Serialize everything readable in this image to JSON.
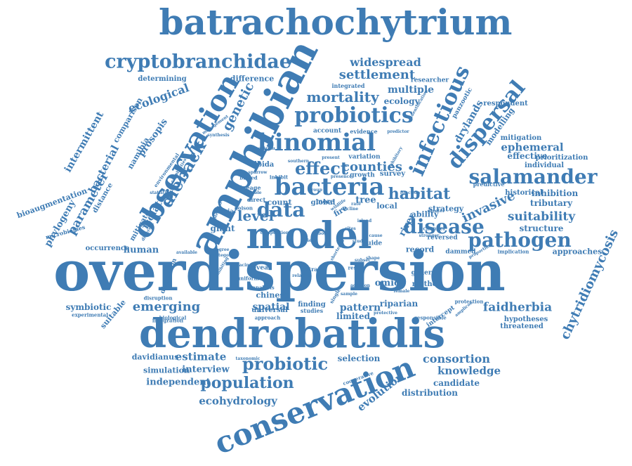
{
  "theme": {
    "word_color": "#3f7cb4",
    "background": "#ffffff"
  },
  "words": [
    "batrachochytrium",
    "overdispersion",
    "dendrobatidis",
    "amphibian",
    "model",
    "conservation",
    "observation",
    "bacteria",
    "binomial",
    "probiotics",
    "salamander",
    "infectious",
    "dispersal",
    "pathogen",
    "disease",
    "cryptobranchidae",
    "data",
    "effect",
    "dieback",
    "probiotic",
    "population",
    "habitat",
    "mortality",
    "chytridiomycosis",
    "level",
    "settlement",
    "widespread",
    "genetic",
    "counties",
    "invasive",
    "suitability",
    "emerging",
    "faidherbia",
    "consortion",
    "knowledge",
    "ephemeral",
    "evolution",
    "ecohydrology",
    "estimate",
    "interview",
    "parameter",
    "bacterial",
    "intermittent",
    "isolate",
    "phylogeny",
    "ecological",
    "prosopis",
    "multiple",
    "ecology",
    "drylands",
    "modelling",
    "effective",
    "spatial",
    "pattern",
    "omics",
    "human",
    "giant",
    "river",
    "structure",
    "tributary",
    "inhibition",
    "approaches",
    "chinese",
    "riparian",
    "limited",
    "symbiotic",
    "suitable",
    "selection",
    "candidate",
    "distribution",
    "independent",
    "simulation",
    "davidianus",
    "mitigate",
    "bioaugmentation",
    "comparison",
    "namibia",
    "distance",
    "microbiomes",
    "occurrence",
    "determining",
    "difference",
    "respondent",
    "researcher",
    "integrated",
    "panzootic",
    "mitigation",
    "prioritization",
    "individual",
    "historical",
    "predictive",
    "strategy",
    "ability",
    "reversed",
    "record",
    "dammed",
    "method",
    "genera",
    "intercept",
    "hypotheses",
    "threatened",
    "responsible",
    "protection",
    "local",
    "global",
    "survey",
    "growth",
    "variation",
    "account",
    "evidence",
    "predictor",
    "present",
    "inhibit",
    "albida",
    "count",
    "more",
    "tree",
    "guide",
    "fire",
    "reveal",
    "extra",
    "universal",
    "approach",
    "finding",
    "studies",
    "biological",
    "integration",
    "experimental",
    "dispersion",
    "disruption",
    "uniform",
    "analysis",
    "implication",
    "proportion",
    "channel",
    "greater",
    "stronger",
    "function",
    "inhibitory",
    "identification",
    "management",
    "synthesis",
    "capabilities",
    "environmental",
    "statistical",
    "biased",
    "lineage",
    "variable",
    "direct",
    "poison",
    "andria",
    "different",
    "potential",
    "available",
    "exhibiting",
    "taxonomic",
    "cooperative",
    "protective",
    "female",
    "amplicon",
    "single",
    "sample",
    "addition",
    "result",
    "wildlife",
    "southern",
    "presence",
    "spectrum",
    "shortened",
    "competition",
    "degree",
    "category",
    "spacing",
    "relative",
    "subset",
    "shape",
    "sites",
    "decline",
    "island",
    "group",
    "field",
    "body",
    "study",
    "cause",
    "sparrow",
    "rate"
  ]
}
